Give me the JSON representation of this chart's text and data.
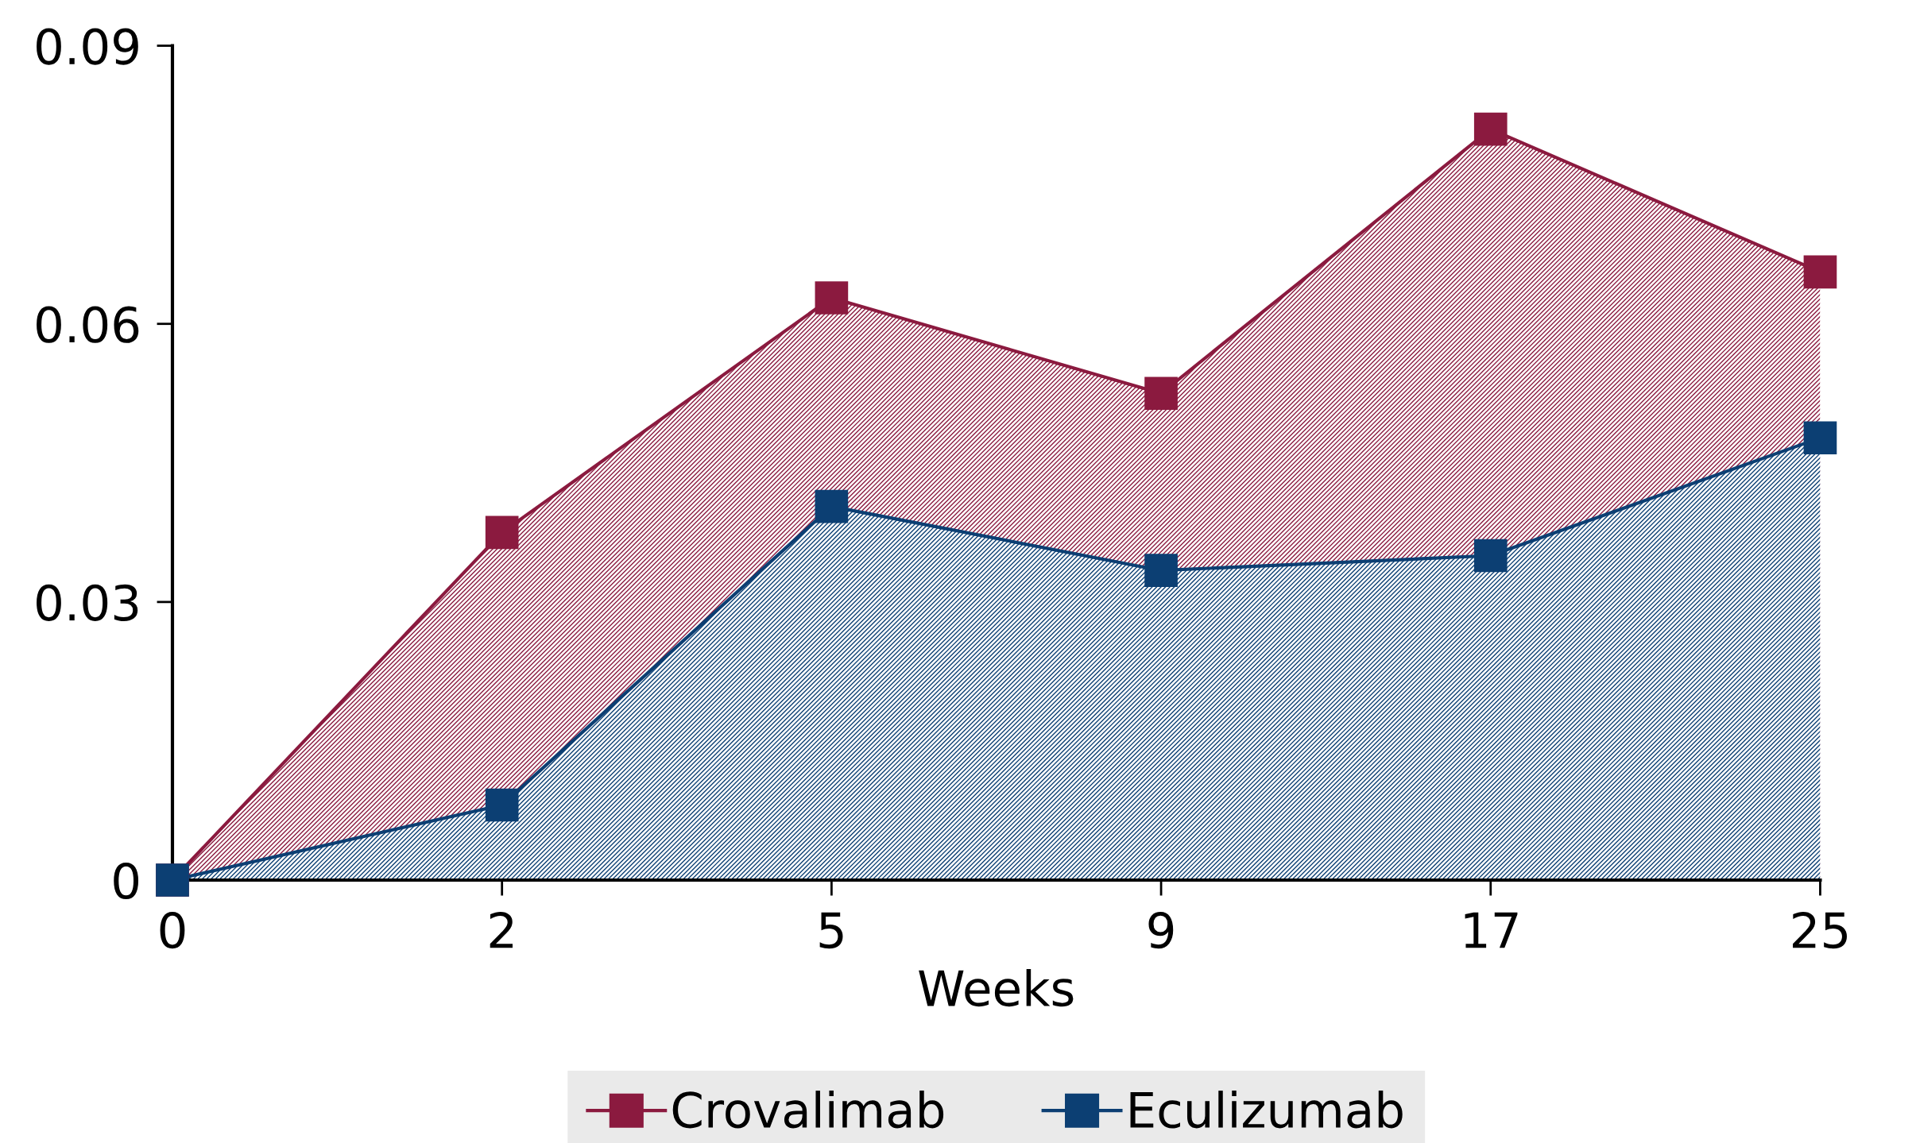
{
  "chart_data": {
    "type": "area",
    "xlabel": "Weeks",
    "categories": [
      "0",
      "2",
      "5",
      "9",
      "17",
      "25"
    ],
    "series": [
      {
        "name": "Crovalimab",
        "color": "#8b1a3f",
        "values": [
          0,
          0.0375,
          0.0628,
          0.0525,
          0.081,
          0.0656
        ]
      },
      {
        "name": "Eculizumab",
        "color": "#0c3f73",
        "values": [
          0,
          0.0081,
          0.0403,
          0.0334,
          0.035,
          0.0477
        ]
      }
    ],
    "ylim": [
      0,
      0.09
    ],
    "yticks": [
      0,
      0.03,
      0.06,
      0.09
    ],
    "grid": false,
    "legend": "bottom",
    "marker": "square",
    "line_style": "solid"
  }
}
